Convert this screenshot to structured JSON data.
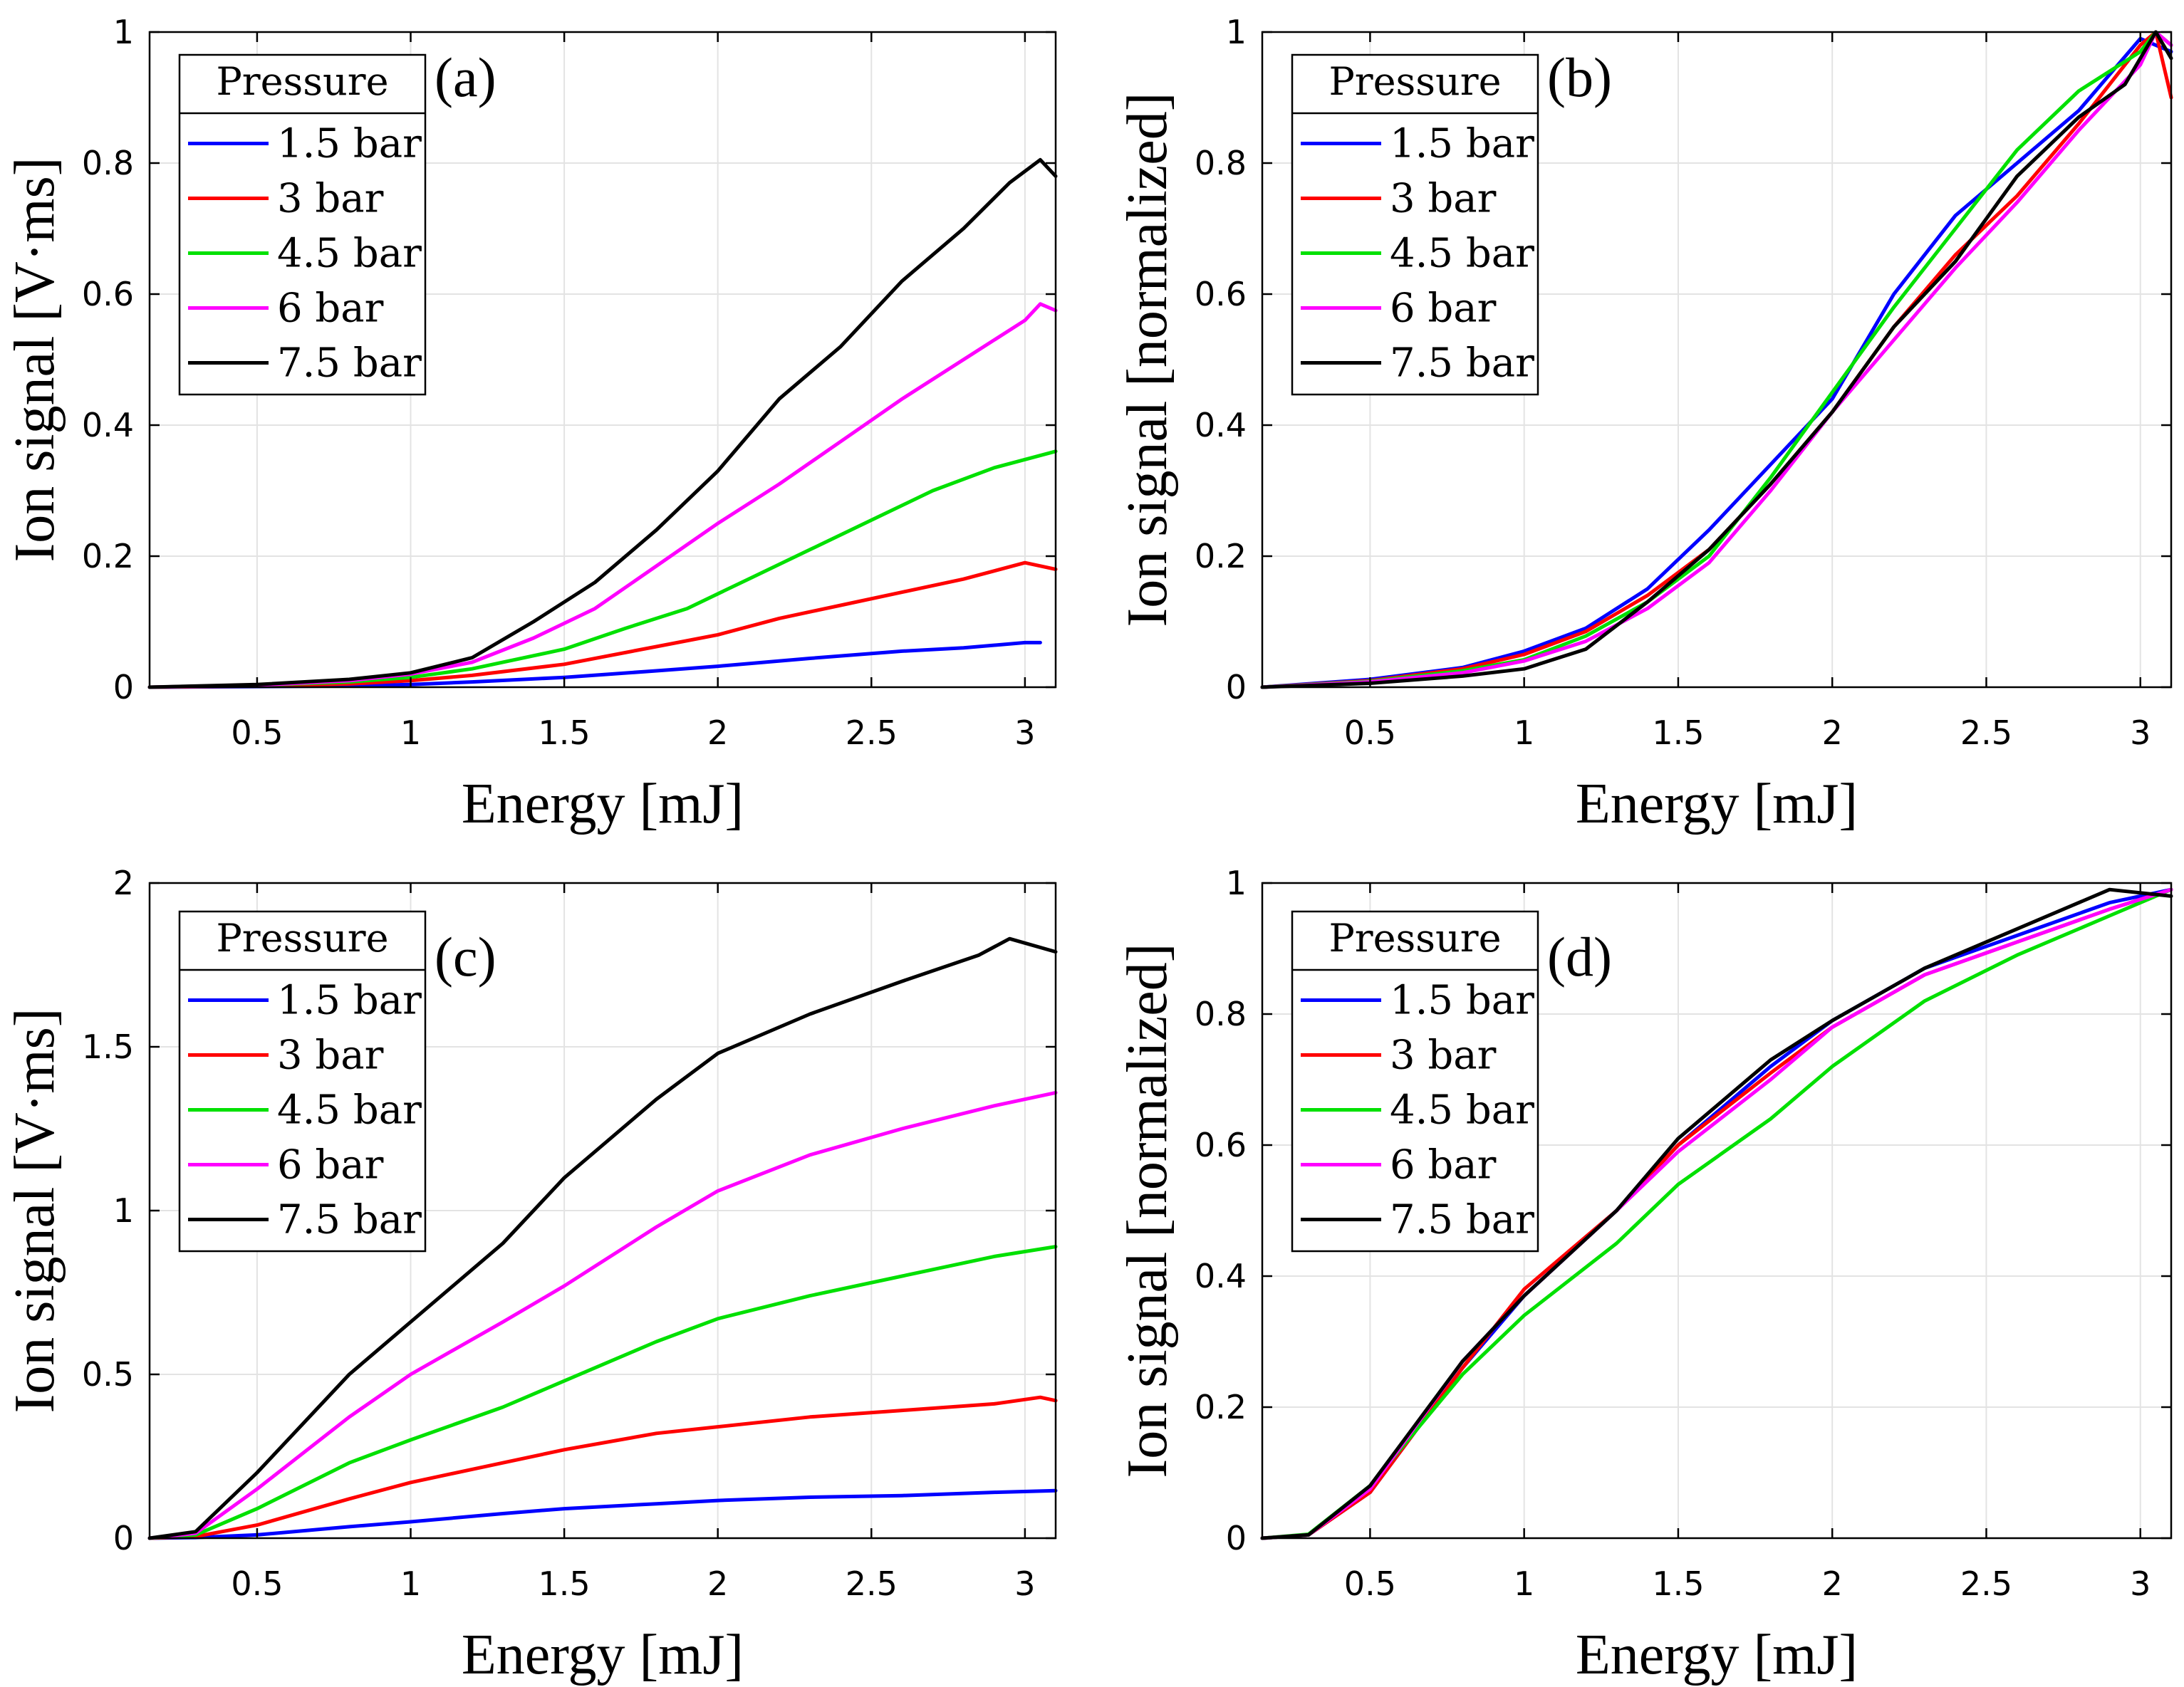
{
  "chart_data": [
    {
      "panel": "(a)",
      "type": "line",
      "xlabel": "Energy [mJ]",
      "ylabel": "Ion signal [V·ms]",
      "xlim": [
        0.15,
        3.1
      ],
      "ylim": [
        0,
        1
      ],
      "xticks": [
        0.5,
        1,
        1.5,
        2,
        2.5,
        3
      ],
      "xtick_labels": [
        "0.5",
        "1",
        "1.5",
        "2",
        "2.5",
        "3"
      ],
      "yticks": [
        0,
        0.2,
        0.4,
        0.6,
        0.8,
        1
      ],
      "ytick_labels": [
        "0",
        "0.2",
        "0.4",
        "0.6",
        "0.8",
        "1"
      ],
      "grid": true,
      "legend": {
        "title": "Pressure",
        "position": "top-left"
      },
      "series": [
        {
          "name": "1.5 bar",
          "color": "#0000ff",
          "x": [
            0.15,
            0.5,
            0.8,
            1.0,
            1.2,
            1.5,
            1.8,
            2.0,
            2.3,
            2.6,
            2.8,
            3.0,
            3.05
          ],
          "y": [
            0,
            0.001,
            0.002,
            0.004,
            0.008,
            0.015,
            0.025,
            0.032,
            0.044,
            0.055,
            0.06,
            0.068,
            0.068
          ]
        },
        {
          "name": "3 bar",
          "color": "#ff0000",
          "x": [
            0.15,
            0.5,
            0.8,
            1.0,
            1.2,
            1.5,
            1.8,
            2.0,
            2.2,
            2.4,
            2.6,
            2.8,
            3.0,
            3.1
          ],
          "y": [
            0,
            0.002,
            0.005,
            0.01,
            0.018,
            0.035,
            0.062,
            0.08,
            0.105,
            0.125,
            0.145,
            0.165,
            0.19,
            0.18
          ]
        },
        {
          "name": "4.5 bar",
          "color": "#00e000",
          "x": [
            0.15,
            0.5,
            0.8,
            1.0,
            1.2,
            1.5,
            1.7,
            1.9,
            2.1,
            2.3,
            2.5,
            2.7,
            2.9,
            3.1
          ],
          "y": [
            0,
            0.003,
            0.008,
            0.015,
            0.028,
            0.058,
            0.09,
            0.12,
            0.165,
            0.21,
            0.255,
            0.3,
            0.335,
            0.36
          ]
        },
        {
          "name": "6 bar",
          "color": "#ff00ff",
          "x": [
            0.15,
            0.5,
            0.8,
            1.0,
            1.2,
            1.4,
            1.6,
            1.8,
            2.0,
            2.2,
            2.4,
            2.6,
            2.8,
            3.0,
            3.05,
            3.1
          ],
          "y": [
            0,
            0.003,
            0.01,
            0.02,
            0.038,
            0.075,
            0.12,
            0.185,
            0.25,
            0.31,
            0.375,
            0.44,
            0.5,
            0.56,
            0.585,
            0.575
          ]
        },
        {
          "name": "7.5 bar",
          "color": "#000000",
          "x": [
            0.15,
            0.5,
            0.8,
            1.0,
            1.2,
            1.4,
            1.6,
            1.8,
            2.0,
            2.2,
            2.4,
            2.6,
            2.8,
            2.95,
            3.05,
            3.1
          ],
          "y": [
            0,
            0.004,
            0.012,
            0.022,
            0.045,
            0.1,
            0.16,
            0.24,
            0.33,
            0.44,
            0.52,
            0.62,
            0.7,
            0.77,
            0.805,
            0.78
          ]
        }
      ]
    },
    {
      "panel": "(b)",
      "type": "line",
      "xlabel": "Energy [mJ]",
      "ylabel": "Ion signal [normalized]",
      "xlim": [
        0.15,
        3.1
      ],
      "ylim": [
        0,
        1
      ],
      "xticks": [
        0.5,
        1,
        1.5,
        2,
        2.5,
        3
      ],
      "xtick_labels": [
        "0.5",
        "1",
        "1.5",
        "2",
        "2.5",
        "3"
      ],
      "yticks": [
        0,
        0.2,
        0.4,
        0.6,
        0.8,
        1
      ],
      "ytick_labels": [
        "0",
        "0.2",
        "0.4",
        "0.6",
        "0.8",
        "1"
      ],
      "grid": true,
      "legend": {
        "title": "Pressure",
        "position": "top-left"
      },
      "series": [
        {
          "name": "1.5 bar",
          "color": "#0000ff",
          "x": [
            0.15,
            0.5,
            0.8,
            1.0,
            1.2,
            1.4,
            1.6,
            1.8,
            2.0,
            2.2,
            2.4,
            2.6,
            2.8,
            3.0,
            3.05,
            3.1
          ],
          "y": [
            0,
            0.012,
            0.03,
            0.055,
            0.09,
            0.15,
            0.24,
            0.34,
            0.44,
            0.6,
            0.72,
            0.8,
            0.88,
            0.99,
            0.98,
            0.97
          ]
        },
        {
          "name": "3 bar",
          "color": "#ff0000",
          "x": [
            0.15,
            0.5,
            0.8,
            1.0,
            1.2,
            1.4,
            1.6,
            1.8,
            2.0,
            2.2,
            2.4,
            2.6,
            2.8,
            3.0,
            3.05,
            3.1
          ],
          "y": [
            0,
            0.01,
            0.028,
            0.05,
            0.085,
            0.14,
            0.21,
            0.31,
            0.42,
            0.55,
            0.66,
            0.75,
            0.86,
            0.98,
            1.0,
            0.9
          ]
        },
        {
          "name": "4.5 bar",
          "color": "#00e000",
          "x": [
            0.15,
            0.5,
            0.8,
            1.0,
            1.2,
            1.4,
            1.6,
            1.8,
            2.0,
            2.2,
            2.4,
            2.6,
            2.8,
            3.0,
            3.05,
            3.1
          ],
          "y": [
            0,
            0.009,
            0.025,
            0.042,
            0.078,
            0.13,
            0.2,
            0.32,
            0.45,
            0.58,
            0.7,
            0.82,
            0.91,
            0.97,
            1.0,
            0.98
          ]
        },
        {
          "name": "6 bar",
          "color": "#ff00ff",
          "x": [
            0.15,
            0.5,
            0.8,
            1.0,
            1.2,
            1.4,
            1.6,
            1.8,
            2.0,
            2.2,
            2.4,
            2.6,
            2.8,
            3.0,
            3.05,
            3.1
          ],
          "y": [
            0,
            0.008,
            0.022,
            0.04,
            0.07,
            0.12,
            0.19,
            0.3,
            0.42,
            0.53,
            0.64,
            0.74,
            0.85,
            0.95,
            1.0,
            0.98
          ]
        },
        {
          "name": "7.5 bar",
          "color": "#000000",
          "x": [
            0.15,
            0.5,
            0.8,
            1.0,
            1.2,
            1.4,
            1.6,
            1.8,
            2.0,
            2.2,
            2.4,
            2.6,
            2.8,
            2.95,
            3.05,
            3.1
          ],
          "y": [
            0,
            0.006,
            0.017,
            0.028,
            0.058,
            0.13,
            0.21,
            0.31,
            0.42,
            0.55,
            0.65,
            0.78,
            0.87,
            0.92,
            1.0,
            0.96
          ]
        }
      ]
    },
    {
      "panel": "(c)",
      "type": "line",
      "xlabel": "Energy [mJ]",
      "ylabel": "Ion signal [V·ms]",
      "xlim": [
        0.15,
        3.1
      ],
      "ylim": [
        0,
        2
      ],
      "xticks": [
        0.5,
        1,
        1.5,
        2,
        2.5,
        3
      ],
      "xtick_labels": [
        "0.5",
        "1",
        "1.5",
        "2",
        "2.5",
        "3"
      ],
      "yticks": [
        0,
        0.5,
        1,
        1.5,
        2
      ],
      "ytick_labels": [
        "0",
        "0.5",
        "1",
        "1.5",
        "2"
      ],
      "grid": true,
      "legend": {
        "title": "Pressure",
        "position": "top-left"
      },
      "series": [
        {
          "name": "1.5 bar",
          "color": "#0000ff",
          "x": [
            0.15,
            0.3,
            0.5,
            0.8,
            1.0,
            1.3,
            1.5,
            1.8,
            2.0,
            2.3,
            2.6,
            2.9,
            3.1
          ],
          "y": [
            0,
            0.002,
            0.01,
            0.035,
            0.05,
            0.075,
            0.09,
            0.105,
            0.115,
            0.125,
            0.13,
            0.14,
            0.145
          ]
        },
        {
          "name": "3 bar",
          "color": "#ff0000",
          "x": [
            0.15,
            0.3,
            0.5,
            0.8,
            1.0,
            1.3,
            1.5,
            1.8,
            2.0,
            2.3,
            2.6,
            2.9,
            3.05,
            3.1
          ],
          "y": [
            0,
            0.005,
            0.04,
            0.12,
            0.17,
            0.23,
            0.27,
            0.32,
            0.34,
            0.37,
            0.39,
            0.41,
            0.43,
            0.42
          ]
        },
        {
          "name": "4.5 bar",
          "color": "#00e000",
          "x": [
            0.15,
            0.3,
            0.5,
            0.8,
            1.0,
            1.3,
            1.5,
            1.8,
            2.0,
            2.3,
            2.6,
            2.9,
            3.1
          ],
          "y": [
            0,
            0.01,
            0.09,
            0.23,
            0.3,
            0.4,
            0.48,
            0.6,
            0.67,
            0.74,
            0.8,
            0.86,
            0.89
          ]
        },
        {
          "name": "6 bar",
          "color": "#ff00ff",
          "x": [
            0.15,
            0.3,
            0.5,
            0.8,
            1.0,
            1.3,
            1.5,
            1.8,
            2.0,
            2.3,
            2.6,
            2.9,
            3.1
          ],
          "y": [
            0,
            0.015,
            0.15,
            0.37,
            0.5,
            0.66,
            0.77,
            0.95,
            1.06,
            1.17,
            1.25,
            1.32,
            1.36
          ]
        },
        {
          "name": "7.5 bar",
          "color": "#000000",
          "x": [
            0.15,
            0.3,
            0.5,
            0.8,
            1.0,
            1.3,
            1.5,
            1.8,
            2.0,
            2.3,
            2.6,
            2.85,
            2.95,
            3.1
          ],
          "y": [
            0,
            0.02,
            0.2,
            0.5,
            0.66,
            0.9,
            1.1,
            1.34,
            1.48,
            1.6,
            1.7,
            1.78,
            1.83,
            1.79
          ]
        }
      ]
    },
    {
      "panel": "(d)",
      "type": "line",
      "xlabel": "Energy [mJ]",
      "ylabel": "Ion signal [normalized]",
      "xlim": [
        0.15,
        3.1
      ],
      "ylim": [
        0,
        1
      ],
      "xticks": [
        0.5,
        1,
        1.5,
        2,
        2.5,
        3
      ],
      "xtick_labels": [
        "0.5",
        "1",
        "1.5",
        "2",
        "2.5",
        "3"
      ],
      "yticks": [
        0,
        0.2,
        0.4,
        0.6,
        0.8,
        1
      ],
      "ytick_labels": [
        "0",
        "0.2",
        "0.4",
        "0.6",
        "0.8",
        "1"
      ],
      "grid": true,
      "legend": {
        "title": "Pressure",
        "position": "top-left"
      },
      "series": [
        {
          "name": "1.5 bar",
          "color": "#0000ff",
          "x": [
            0.15,
            0.3,
            0.5,
            0.8,
            1.0,
            1.3,
            1.5,
            1.8,
            2.0,
            2.3,
            2.6,
            2.9,
            3.1
          ],
          "y": [
            0,
            0.005,
            0.07,
            0.26,
            0.37,
            0.5,
            0.6,
            0.72,
            0.79,
            0.87,
            0.92,
            0.97,
            0.99
          ]
        },
        {
          "name": "3 bar",
          "color": "#ff0000",
          "x": [
            0.15,
            0.3,
            0.5,
            0.8,
            1.0,
            1.3,
            1.5,
            1.8,
            2.0,
            2.3,
            2.6,
            2.9,
            3.1
          ],
          "y": [
            0,
            0.005,
            0.07,
            0.26,
            0.38,
            0.5,
            0.6,
            0.71,
            0.78,
            0.86,
            0.91,
            0.96,
            0.99
          ]
        },
        {
          "name": "4.5 bar",
          "color": "#00e000",
          "x": [
            0.15,
            0.3,
            0.5,
            0.8,
            1.0,
            1.3,
            1.5,
            1.8,
            2.0,
            2.3,
            2.6,
            2.9,
            3.1
          ],
          "y": [
            0,
            0.006,
            0.08,
            0.25,
            0.34,
            0.45,
            0.54,
            0.64,
            0.72,
            0.82,
            0.89,
            0.95,
            0.99
          ]
        },
        {
          "name": "6 bar",
          "color": "#ff00ff",
          "x": [
            0.15,
            0.3,
            0.5,
            0.8,
            1.0,
            1.3,
            1.5,
            1.8,
            2.0,
            2.3,
            2.6,
            2.9,
            3.1
          ],
          "y": [
            0,
            0.005,
            0.075,
            0.27,
            0.37,
            0.5,
            0.59,
            0.7,
            0.78,
            0.86,
            0.91,
            0.96,
            0.99
          ]
        },
        {
          "name": "7.5 bar",
          "color": "#000000",
          "x": [
            0.15,
            0.3,
            0.5,
            0.8,
            1.0,
            1.3,
            1.5,
            1.8,
            2.0,
            2.3,
            2.6,
            2.9,
            3.1
          ],
          "y": [
            0,
            0.005,
            0.08,
            0.27,
            0.37,
            0.5,
            0.61,
            0.73,
            0.79,
            0.87,
            0.93,
            0.99,
            0.98
          ]
        }
      ]
    }
  ]
}
